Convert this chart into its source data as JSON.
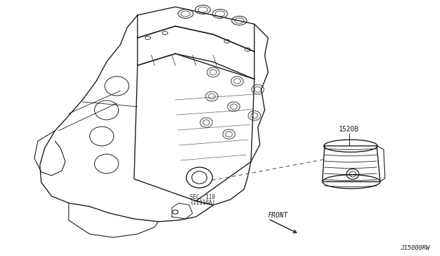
{
  "background_color": "#ffffff",
  "fig_width": 6.4,
  "fig_height": 3.72,
  "dpi": 100,
  "label_1520B": "1520B",
  "label_sec": "SEC. 110",
  "label_sec2": "(11110A)",
  "label_front": "FRONT",
  "label_ref": "J15000RW",
  "line_color": "#1a1a1a",
  "text_color": "#1a1a1a"
}
